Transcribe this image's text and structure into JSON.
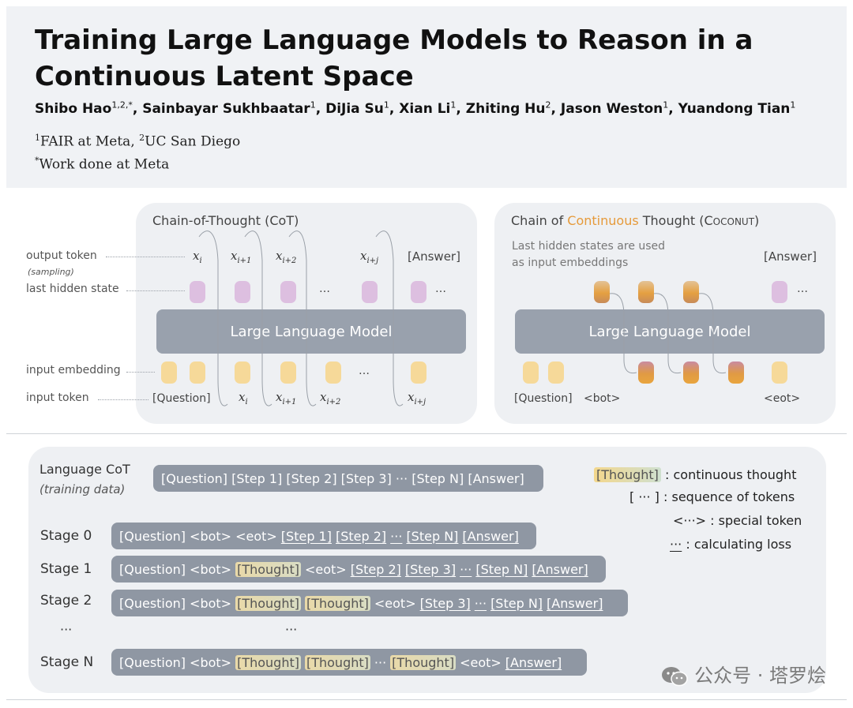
{
  "header": {
    "title_line1": "Training Large Language Models to Reason in a",
    "title_line2": "Continuous Latent Space",
    "authors": [
      {
        "name": "Shibo Hao",
        "sup": "1,2,*"
      },
      {
        "name": "Sainbayar Sukhbaatar",
        "sup": "1"
      },
      {
        "name": "DiJia Su",
        "sup": "1"
      },
      {
        "name": "Xian Li",
        "sup": "1"
      },
      {
        "name": "Zhiting Hu",
        "sup": "2"
      },
      {
        "name": "Jason Weston",
        "sup": "1"
      },
      {
        "name": "Yuandong Tian",
        "sup": "1"
      }
    ],
    "affil_sup1": "1",
    "affil_text1": "FAIR at Meta, ",
    "affil_sup2": "2",
    "affil_text2": "UC San Diego",
    "note_sup": "*",
    "note_text": "Work done at Meta"
  },
  "cot_panel": {
    "title": "Chain-of-Thought (CoT)",
    "llm_label": "Large Language Model",
    "side_labels": {
      "output_token": "output token",
      "sampling": "(sampling)",
      "last_hidden": "last hidden state",
      "input_embedding": "input embedding",
      "input_token": "input token"
    },
    "outputs": [
      "x",
      "x",
      "x",
      "…",
      "x",
      "[Answer]",
      "…"
    ],
    "output_subs": [
      "i",
      "i+1",
      "i+2",
      "",
      "i+j",
      "",
      ""
    ],
    "inputs": [
      "[Question]",
      "x",
      "x",
      "x",
      "…",
      "x"
    ],
    "input_subs": [
      "",
      "i",
      "i+1",
      "i+2",
      "",
      "i+j"
    ]
  },
  "coconut_panel": {
    "title_prefix": "Chain of ",
    "title_highlight": "Continuous",
    "title_suffix": " Thought (",
    "title_name_C": "C",
    "title_name_rest": "OCONUT",
    "title_close": ")",
    "highlight_color": "#e69a3a",
    "note_line1": "Last hidden states are used",
    "note_line2": "as input embeddings",
    "llm_label": "Large Language Model",
    "answer": "[Answer]",
    "ellipsis": "…",
    "inputs": [
      "[Question]",
      "<bot>",
      "<eot>"
    ]
  },
  "training": {
    "lang_cot_label": "Language CoT",
    "lang_cot_sub": "(training data)",
    "lang_cot_seq": "[Question] [Step 1] [Step 2] [Step 3] ··· [Step N] [Answer]",
    "stages": [
      {
        "label": "Stage 0",
        "tokens": [
          {
            "t": "[Question]",
            "k": "plain"
          },
          {
            "t": "<bot>",
            "k": "plain"
          },
          {
            "t": "<eot>",
            "k": "plain"
          },
          {
            "t": "[Step 1]",
            "k": "u"
          },
          {
            "t": "[Step 2]",
            "k": "u"
          },
          {
            "t": "···",
            "k": "u"
          },
          {
            "t": "[Step N]",
            "k": "u"
          },
          {
            "t": "[Answer]",
            "k": "u"
          }
        ]
      },
      {
        "label": "Stage 1",
        "tokens": [
          {
            "t": "[Question]",
            "k": "plain"
          },
          {
            "t": "<bot>",
            "k": "plain"
          },
          {
            "t": "[Thought]",
            "k": "th"
          },
          {
            "t": "<eot>",
            "k": "plain"
          },
          {
            "t": "[Step 2]",
            "k": "u"
          },
          {
            "t": "[Step 3]",
            "k": "u"
          },
          {
            "t": "···",
            "k": "u"
          },
          {
            "t": "[Step N]",
            "k": "u"
          },
          {
            "t": "[Answer]",
            "k": "u"
          }
        ]
      },
      {
        "label": "Stage 2",
        "tokens": [
          {
            "t": "[Question]",
            "k": "plain"
          },
          {
            "t": "<bot>",
            "k": "plain"
          },
          {
            "t": "[Thought]",
            "k": "th"
          },
          {
            "t": "[Thought]",
            "k": "th"
          },
          {
            "t": "<eot>",
            "k": "plain"
          },
          {
            "t": "[Step 3]",
            "k": "u"
          },
          {
            "t": "···",
            "k": "u"
          },
          {
            "t": "[Step N]",
            "k": "u"
          },
          {
            "t": "[Answer]",
            "k": "u"
          }
        ]
      },
      {
        "label": "Stage N",
        "tokens": [
          {
            "t": "[Question]",
            "k": "plain"
          },
          {
            "t": "<bot>",
            "k": "plain"
          },
          {
            "t": "[Thought]",
            "k": "th"
          },
          {
            "t": "[Thought]",
            "k": "th"
          },
          {
            "t": "···",
            "k": "plain"
          },
          {
            "t": "[Thought]",
            "k": "th"
          },
          {
            "t": "<eot>",
            "k": "plain"
          },
          {
            "t": "[Answer]",
            "k": "u"
          }
        ]
      }
    ],
    "dots_left": "···",
    "dots_mid": "···",
    "legend": {
      "chip": "[Thought]",
      "l1": ": continuous thought",
      "l2": "[ ··· ] : sequence of tokens",
      "l3": "<···> : special token",
      "l4_mark": "···",
      "l4": " : calculating loss"
    }
  },
  "watermark": "公众号 · 塔罗烩"
}
